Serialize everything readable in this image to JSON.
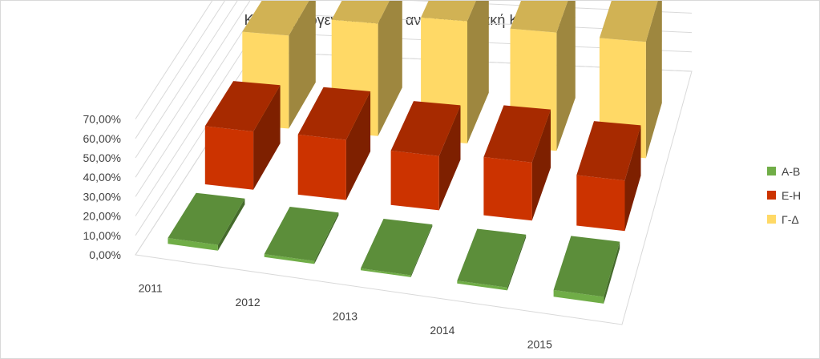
{
  "chart_data": {
    "type": "bar",
    "title": "Κτίρια τριτογενούς τομέα ανά Ενεργειακή Κατηγορία",
    "xlabel": "",
    "ylabel": "",
    "categories": [
      "2011",
      "2012",
      "2013",
      "2014",
      "2015"
    ],
    "y_ticks": [
      "0,00%",
      "10,00%",
      "20,00%",
      "30,00%",
      "40,00%",
      "50,00%",
      "60,00%",
      "70,00%"
    ],
    "ylim": [
      0,
      70
    ],
    "grid": true,
    "legend_position": "right",
    "series": [
      {
        "name": "Α-Β",
        "values": [
          3.0,
          1.5,
          1.0,
          1.5,
          3.5
        ],
        "color": "#70ad47"
      },
      {
        "name": "Ε-Η",
        "values": [
          30.0,
          31.0,
          28.0,
          30.0,
          26.0
        ],
        "color": "#cc3300"
      },
      {
        "name": "Γ-Δ",
        "values": [
          48.0,
          58.0,
          63.0,
          61.0,
          60.0
        ],
        "color": "#ffd966"
      }
    ]
  }
}
